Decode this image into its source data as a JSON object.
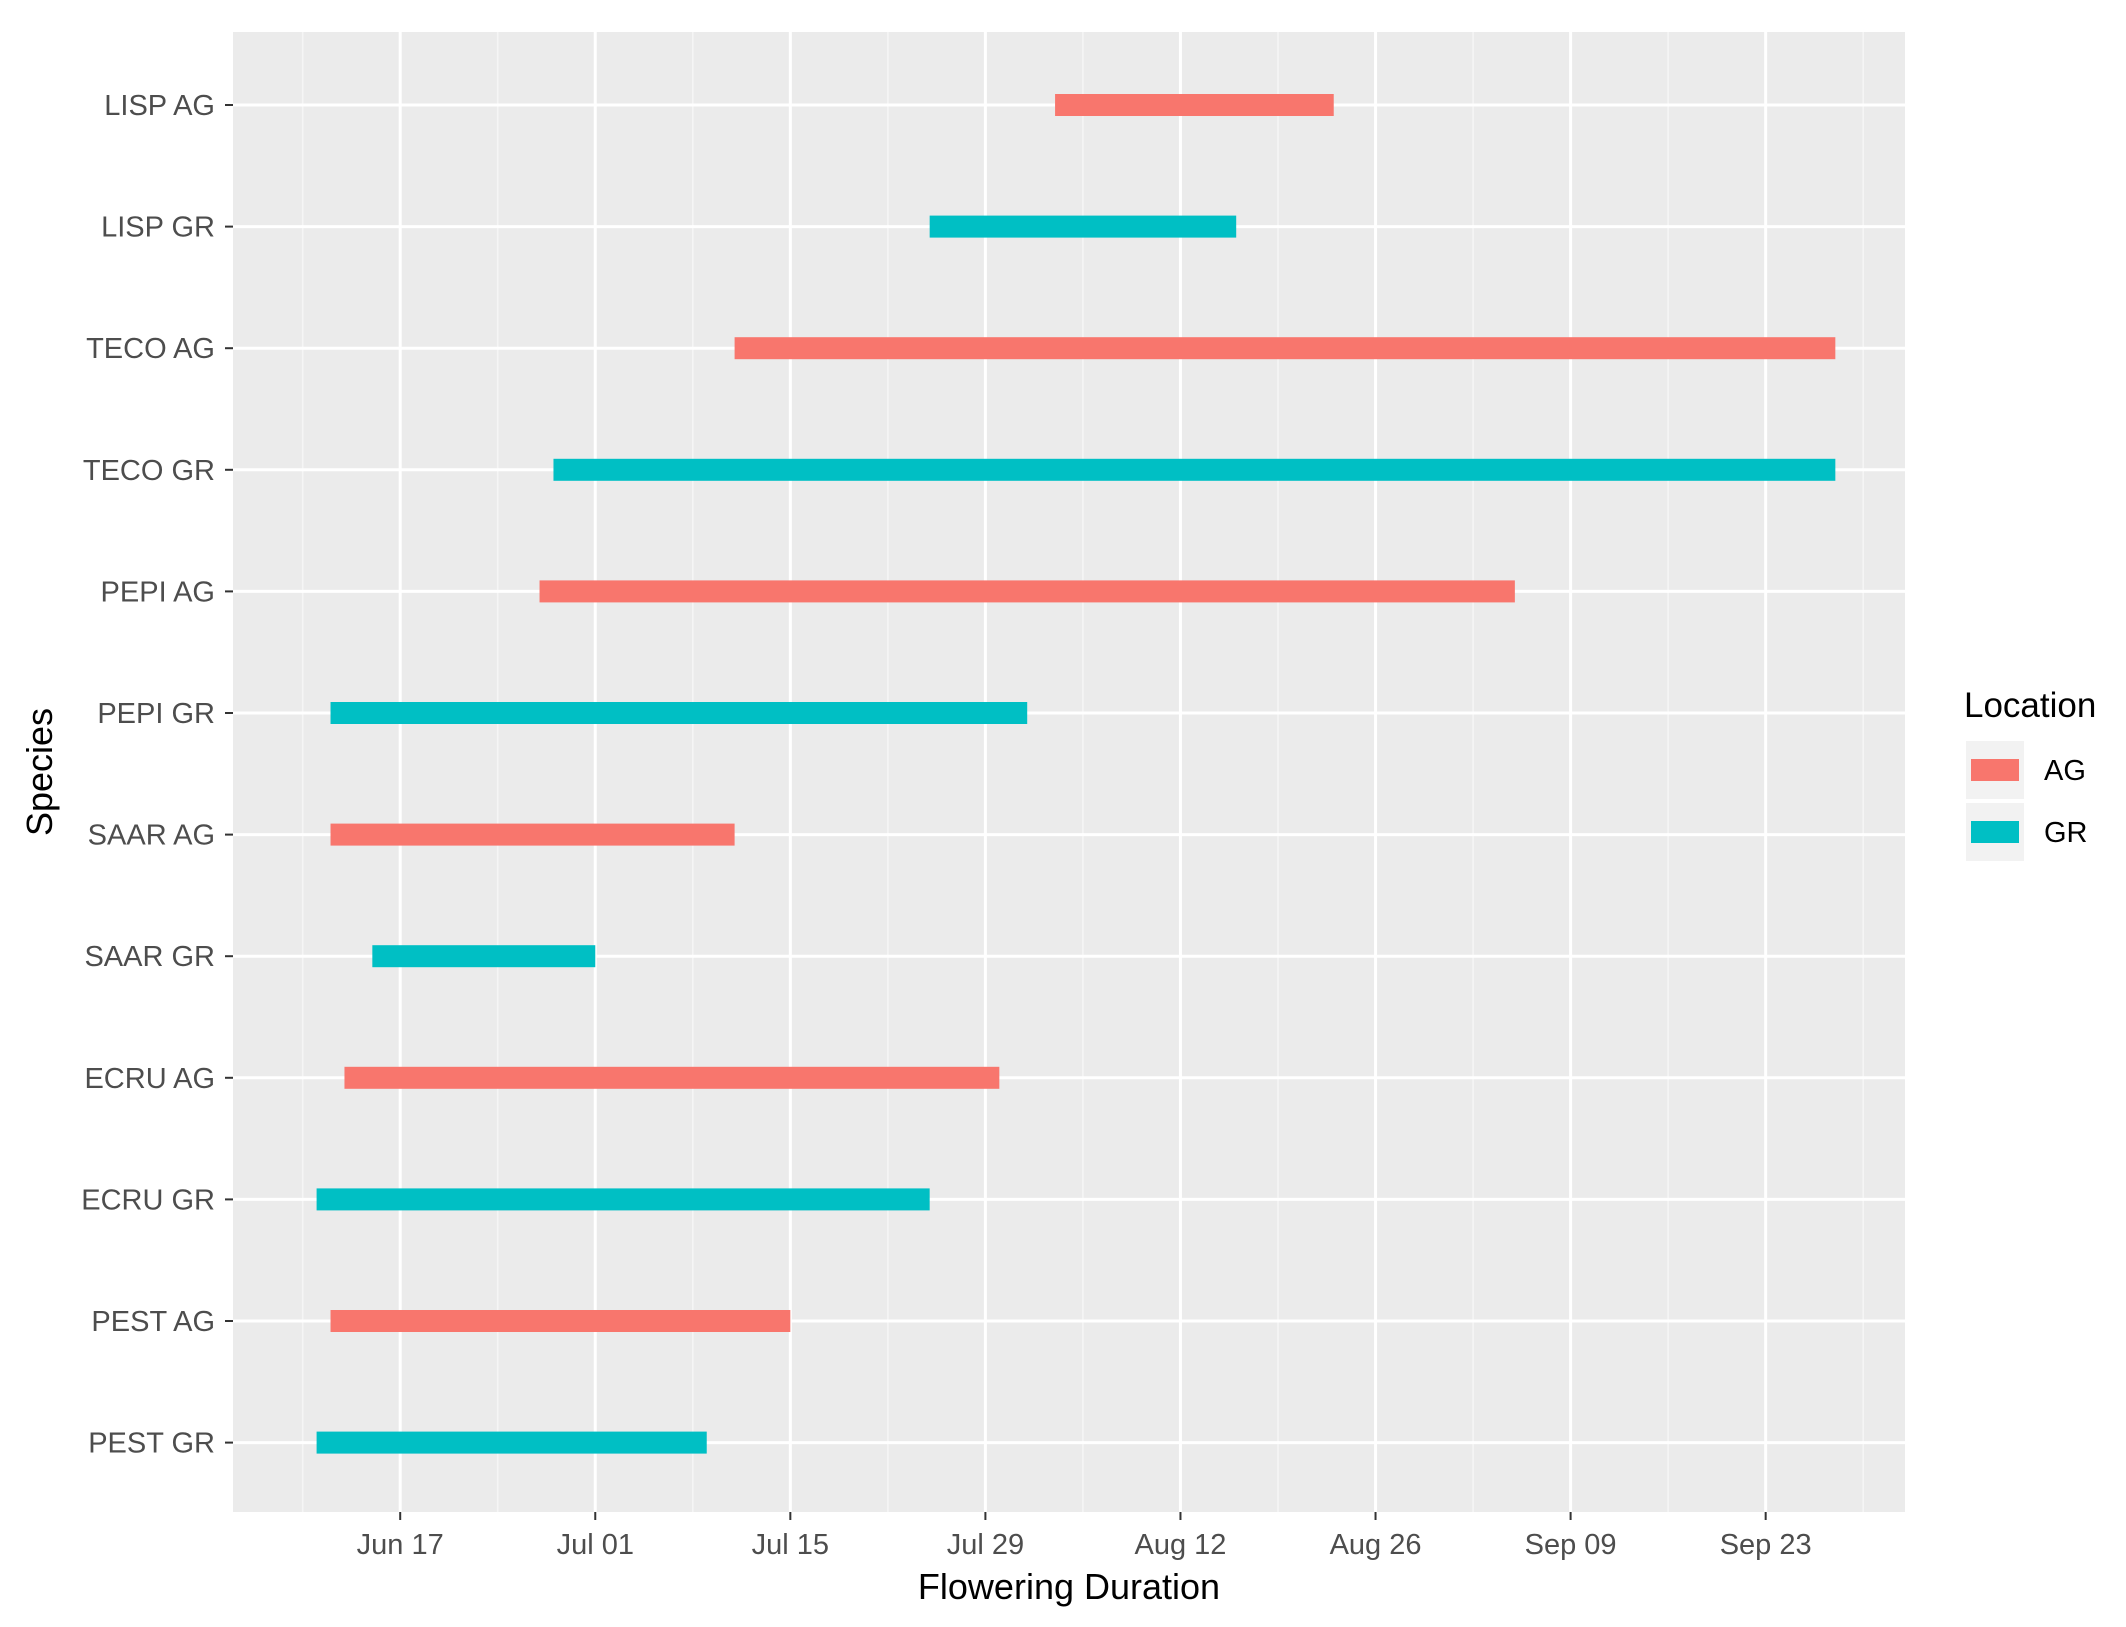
{
  "chart_data": {
    "type": "bar",
    "orientation": "horizontal",
    "xlabel": "Flowering Duration",
    "ylabel": "Species",
    "x_ticks": [
      "Jun 17",
      "Jul 01",
      "Jul 15",
      "Jul 29",
      "Aug 12",
      "Aug 26",
      "Sep 09",
      "Sep 23"
    ],
    "xlim": [
      "2020-06-05",
      "2020-10-03"
    ],
    "grid": true,
    "legend": {
      "title": "Location",
      "placement": "right",
      "entries": [
        {
          "label": "AG",
          "color": "#F8766D"
        },
        {
          "label": "GR",
          "color": "#00BFC4"
        }
      ]
    },
    "categories": [
      "LISP AG",
      "LISP GR",
      "TECO AG",
      "TECO GR",
      "PEPI AG",
      "PEPI GR",
      "SAAR AG",
      "SAAR GR",
      "ECRU AG",
      "ECRU GR",
      "PEST AG",
      "PEST GR"
    ],
    "series": [
      {
        "name": "AG",
        "color": "#F8766D",
        "bars": [
          {
            "category": "LISP AG",
            "start": "2020-08-03",
            "end": "2020-08-23"
          },
          {
            "category": "TECO AG",
            "start": "2020-07-11",
            "end": "2020-09-28"
          },
          {
            "category": "PEPI AG",
            "start": "2020-06-27",
            "end": "2020-09-05"
          },
          {
            "category": "SAAR AG",
            "start": "2020-06-12",
            "end": "2020-07-11"
          },
          {
            "category": "ECRU AG",
            "start": "2020-06-13",
            "end": "2020-07-30"
          },
          {
            "category": "PEST AG",
            "start": "2020-06-12",
            "end": "2020-07-15"
          }
        ]
      },
      {
        "name": "GR",
        "color": "#00BFC4",
        "bars": [
          {
            "category": "LISP GR",
            "start": "2020-07-25",
            "end": "2020-08-16"
          },
          {
            "category": "TECO GR",
            "start": "2020-06-28",
            "end": "2020-09-28"
          },
          {
            "category": "PEPI GR",
            "start": "2020-06-12",
            "end": "2020-08-01"
          },
          {
            "category": "SAAR GR",
            "start": "2020-06-15",
            "end": "2020-07-01"
          },
          {
            "category": "ECRU GR",
            "start": "2020-06-11",
            "end": "2020-07-25"
          },
          {
            "category": "PEST GR",
            "start": "2020-06-11",
            "end": "2020-07-09"
          }
        ]
      }
    ],
    "colors": {
      "panel_background": "#EBEBEB",
      "grid_major": "#FFFFFF",
      "grid_minor": "#F5F5F5"
    }
  }
}
